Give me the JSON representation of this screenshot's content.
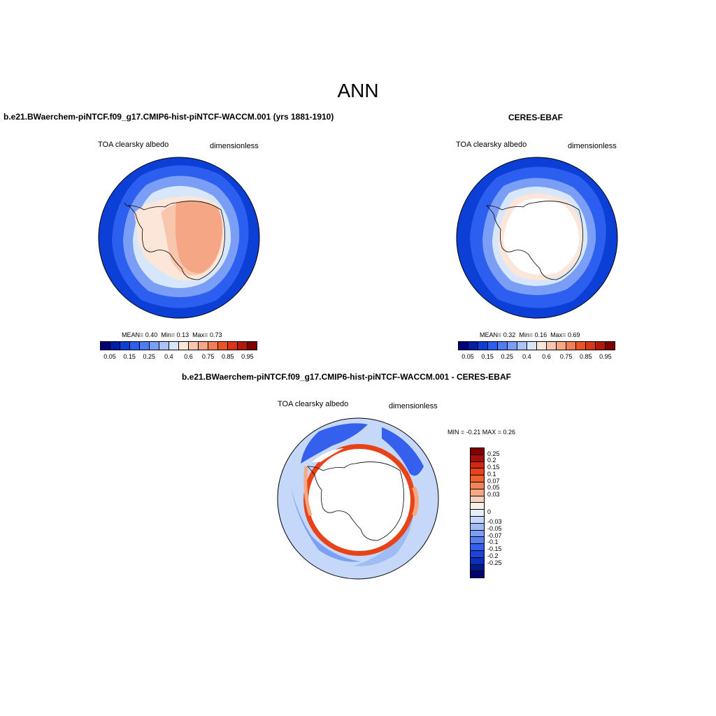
{
  "title": "ANN",
  "panels": [
    {
      "title": "b.e21.BWaerchem-piNTCF.f09_g17.CMIP6-hist-piNTCF-WACCM.001 (yrs 1881-1910)",
      "variable": "TOA clearsky albedo",
      "units": "dimensionless",
      "stats": {
        "mean_label": "MEAN=",
        "mean": "0.40",
        "min_label": "Min=",
        "min": "0.13",
        "max_label": "Max=",
        "max": "0.73"
      }
    },
    {
      "title": "CERES-EBAF",
      "variable": "TOA clearsky albedo",
      "units": "dimensionless",
      "stats": {
        "mean_label": "MEAN=",
        "mean": "0.32",
        "min_label": "Min=",
        "min": "0.16",
        "max_label": "Max=",
        "max": "0.69"
      }
    }
  ],
  "diff_panel": {
    "title": "b.e21.BWaerchem-piNTCF.f09_g17.CMIP6-hist-piNTCF-WACCM.001 - CERES-EBAF",
    "variable": "TOA clearsky albedo",
    "units": "dimensionless",
    "minmax": "MIN =  -0.21 MAX =   0.26"
  },
  "colorbar": {
    "colors": [
      "#000078",
      "#001fa6",
      "#0b3fd6",
      "#2c5ff0",
      "#4f7cf2",
      "#7a9df5",
      "#a9c2f8",
      "#d7e7fb",
      "#fbe6d9",
      "#f8c6ad",
      "#f4a685",
      "#f17e56",
      "#ea5228",
      "#d93518",
      "#b01a0a",
      "#7f0000"
    ],
    "labels": [
      "0.05",
      "0.15",
      "0.25",
      "0.4",
      "0.6",
      "0.75",
      "0.85",
      "0.95"
    ]
  },
  "diff_colorbar": {
    "colors": [
      "#7f0000",
      "#a80e08",
      "#cf2a10",
      "#e84318",
      "#f0622f",
      "#f38455",
      "#f6a882",
      "#fad2bc",
      "#fdf0e6",
      "#e6effd",
      "#c6d8f9",
      "#9fbcf5",
      "#7b9ff2",
      "#577ff0",
      "#3560ee",
      "#1a45dc",
      "#0b2fb8",
      "#001a8c",
      "#000070"
    ],
    "labels": [
      "0.25",
      "0.2",
      "0.15",
      "0.1",
      "0.07",
      "0.05",
      "0.03",
      "0",
      "-0.03",
      "-0.05",
      "-0.07",
      "-0.1",
      "-0.15",
      "-0.2",
      "-0.25"
    ]
  }
}
